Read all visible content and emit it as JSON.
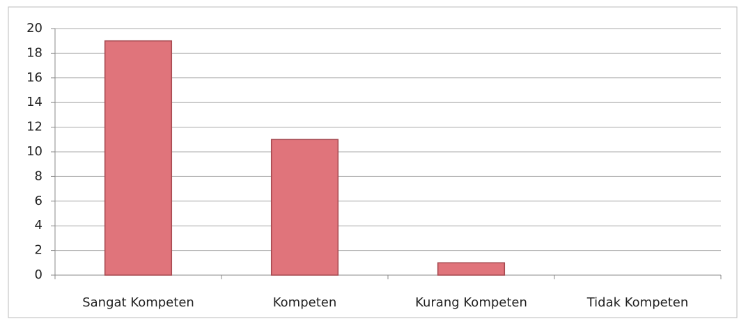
{
  "chart_data": {
    "type": "bar",
    "categories": [
      "Sangat Kompeten",
      "Kompeten",
      "Kurang Kompeten",
      "Tidak Kompeten"
    ],
    "values": [
      19,
      11,
      1,
      0
    ],
    "color": "#e0747b",
    "ylim": [
      0,
      20
    ],
    "yticks": [
      0,
      2,
      4,
      6,
      8,
      10,
      12,
      14,
      16,
      18,
      20
    ],
    "grid": true
  }
}
